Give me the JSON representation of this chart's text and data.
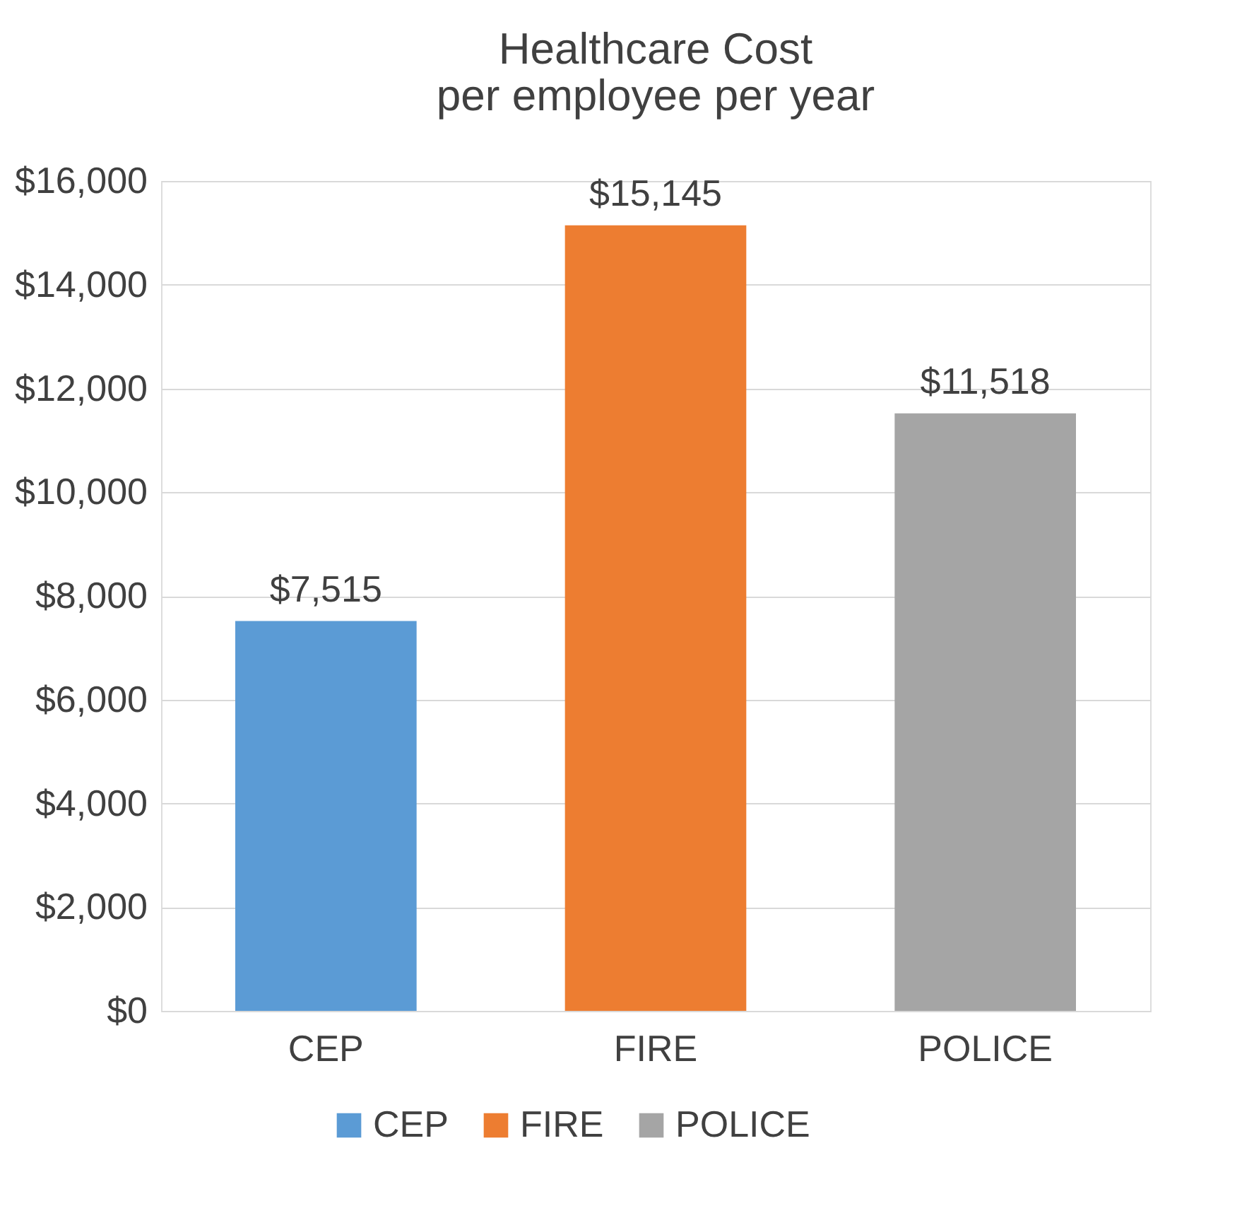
{
  "chart_data": {
    "type": "bar",
    "title": "Healthcare Cost\nper employee per year",
    "categories": [
      "CEP",
      "FIRE",
      "POLICE"
    ],
    "series": [
      {
        "name": "CEP",
        "color": "#5b9bd5",
        "values": [
          7515,
          null,
          null
        ],
        "value_labels": [
          "$7,515",
          null,
          null
        ]
      },
      {
        "name": "FIRE",
        "color": "#ed7d31",
        "values": [
          null,
          15145,
          null
        ],
        "value_labels": [
          null,
          "$15,145",
          null
        ]
      },
      {
        "name": "POLICE",
        "color": "#a5a5a5",
        "values": [
          null,
          null,
          11518
        ],
        "value_labels": [
          null,
          null,
          "$11,518"
        ]
      }
    ],
    "ylim": [
      0,
      16000
    ],
    "yticks": [
      {
        "value": 0,
        "label": "$0"
      },
      {
        "value": 2000,
        "label": "$2,000"
      },
      {
        "value": 4000,
        "label": "$4,000"
      },
      {
        "value": 6000,
        "label": "$6,000"
      },
      {
        "value": 8000,
        "label": "$8,000"
      },
      {
        "value": 10000,
        "label": "$10,000"
      },
      {
        "value": 12000,
        "label": "$12,000"
      },
      {
        "value": 14000,
        "label": "$14,000"
      },
      {
        "value": 16000,
        "label": "$16,000"
      }
    ],
    "grid": "y",
    "legend": "bottom"
  }
}
